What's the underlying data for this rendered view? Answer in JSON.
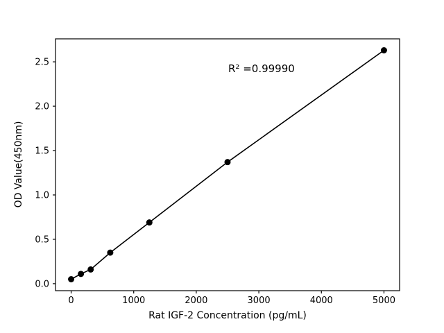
{
  "chart_data": {
    "type": "scatter",
    "x": [
      0,
      156.25,
      312.5,
      625,
      1250,
      2500,
      5000
    ],
    "y": [
      0.05,
      0.11,
      0.16,
      0.35,
      0.69,
      1.37,
      2.63
    ],
    "series": [
      {
        "name": "standard-curve",
        "x": [
          0,
          156.25,
          312.5,
          625,
          1250,
          2500,
          5000
        ],
        "y": [
          0.05,
          0.11,
          0.16,
          0.35,
          0.69,
          1.37,
          2.63
        ]
      }
    ],
    "title": "",
    "xlabel": "Rat IGF-2 Concentration (pg/mL)",
    "ylabel": "OD Value(450nm)",
    "annotation": "R² =0.99990",
    "xticks": [
      0,
      1000,
      2000,
      3000,
      4000,
      5000
    ],
    "xtick_labels": [
      "0",
      "1000",
      "2000",
      "3000",
      "4000",
      "5000"
    ],
    "yticks": [
      0.0,
      0.5,
      1.0,
      1.5,
      2.0,
      2.5
    ],
    "ytick_labels": [
      "0.0",
      "0.5",
      "1.0",
      "1.5",
      "2.0",
      "2.5"
    ],
    "xlim": [
      -250,
      5250
    ],
    "ylim": [
      -0.079,
      2.759
    ],
    "grid": false,
    "legend": "none",
    "line_color": "#000000",
    "marker_color": "#000000",
    "frame_color": "#000000",
    "background": "#ffffff"
  }
}
